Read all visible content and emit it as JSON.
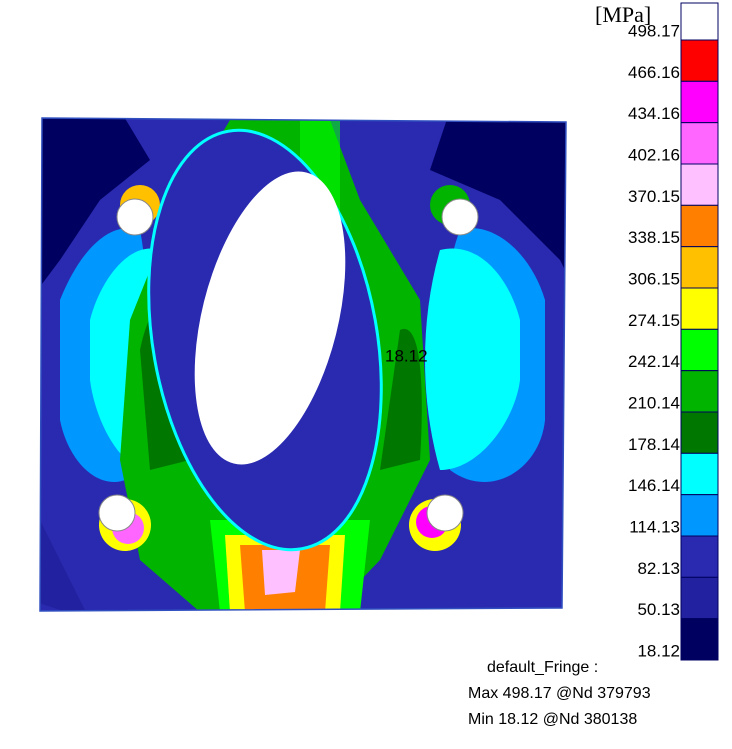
{
  "legend": {
    "unit": "[MPa]",
    "levels": [
      498.17,
      466.16,
      434.16,
      402.16,
      370.15,
      338.15,
      306.15,
      274.15,
      242.14,
      210.14,
      178.14,
      146.14,
      114.13,
      82.13,
      50.13,
      18.12
    ],
    "colors": [
      "#ffffff",
      "#ff0000",
      "#ff00ff",
      "#ff66ff",
      "#ffc0ff",
      "#ff8000",
      "#ffc000",
      "#ffff00",
      "#00ff00",
      "#00b400",
      "#007800",
      "#00ffff",
      "#0098ff",
      "#2a2ab0",
      "#2222a0",
      "#000060"
    ]
  },
  "plot": {
    "marker_label": "18.12"
  },
  "footer": {
    "title": "default_Fringe :",
    "max": "Max 498.17 @Nd 379793",
    "min": "Min 18.12 @Nd 380138"
  }
}
